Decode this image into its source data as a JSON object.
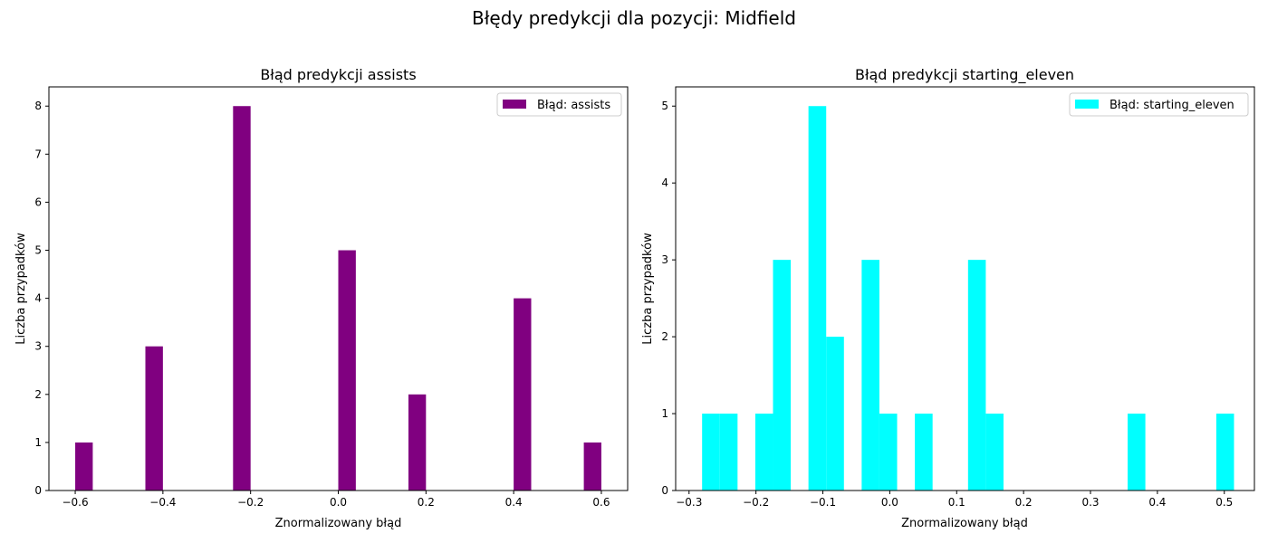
{
  "figure_title": "Błędy predykcji dla pozycji: Midfield",
  "chart_data": [
    {
      "type": "bar",
      "title": "Błąd predykcji assists",
      "xlabel": "Znormalizowany błąd",
      "ylabel": "Liczba przypadków",
      "legend": "Błąd: assists",
      "legend_position": "upper right",
      "color": "#800080",
      "xlim": [
        -0.66,
        0.66
      ],
      "ylim": [
        0,
        8.4
      ],
      "xticks": [
        -0.6,
        -0.4,
        -0.2,
        0.0,
        0.2,
        0.4,
        0.6
      ],
      "xtick_labels": [
        "−0.6",
        "−0.4",
        "−0.2",
        "0.0",
        "0.2",
        "0.4",
        "0.6"
      ],
      "yticks": [
        0,
        1,
        2,
        3,
        4,
        5,
        6,
        7,
        8
      ],
      "ytick_labels": [
        "0",
        "1",
        "2",
        "3",
        "4",
        "5",
        "6",
        "7",
        "8"
      ],
      "bin_width": 0.04,
      "bins": [
        {
          "x0": -0.6,
          "value": 1
        },
        {
          "x0": -0.44,
          "value": 3
        },
        {
          "x0": -0.24,
          "value": 8
        },
        {
          "x0": 0.0,
          "value": 5
        },
        {
          "x0": 0.16,
          "value": 2
        },
        {
          "x0": 0.4,
          "value": 4
        },
        {
          "x0": 0.56,
          "value": 1
        }
      ]
    },
    {
      "type": "bar",
      "title": "Błąd predykcji starting_eleven",
      "xlabel": "Znormalizowany błąd",
      "ylabel": "Liczba przypadków",
      "legend": "Błąd: starting_eleven",
      "legend_position": "upper right",
      "color": "#00ffff",
      "xlim": [
        -0.32,
        0.545
      ],
      "ylim": [
        0,
        5.25
      ],
      "xticks": [
        -0.3,
        -0.2,
        -0.1,
        0.0,
        0.1,
        0.2,
        0.3,
        0.4,
        0.5
      ],
      "xtick_labels": [
        "−0.3",
        "−0.2",
        "−0.1",
        "0.0",
        "0.1",
        "0.2",
        "0.3",
        "0.4",
        "0.5"
      ],
      "yticks": [
        0,
        1,
        2,
        3,
        4,
        5
      ],
      "ytick_labels": [
        "0",
        "1",
        "2",
        "3",
        "4",
        "5"
      ],
      "bin_width": 0.0265,
      "bins": [
        {
          "x0": -0.2805,
          "value": 1
        },
        {
          "x0": -0.254,
          "value": 1
        },
        {
          "x0": -0.201,
          "value": 1
        },
        {
          "x0": -0.1745,
          "value": 3
        },
        {
          "x0": -0.1215,
          "value": 5
        },
        {
          "x0": -0.095,
          "value": 2
        },
        {
          "x0": -0.042,
          "value": 3
        },
        {
          "x0": -0.0155,
          "value": 1
        },
        {
          "x0": 0.0375,
          "value": 1
        },
        {
          "x0": 0.117,
          "value": 3
        },
        {
          "x0": 0.1435,
          "value": 1
        },
        {
          "x0": 0.3555,
          "value": 1
        },
        {
          "x0": 0.488,
          "value": 1
        }
      ]
    }
  ]
}
